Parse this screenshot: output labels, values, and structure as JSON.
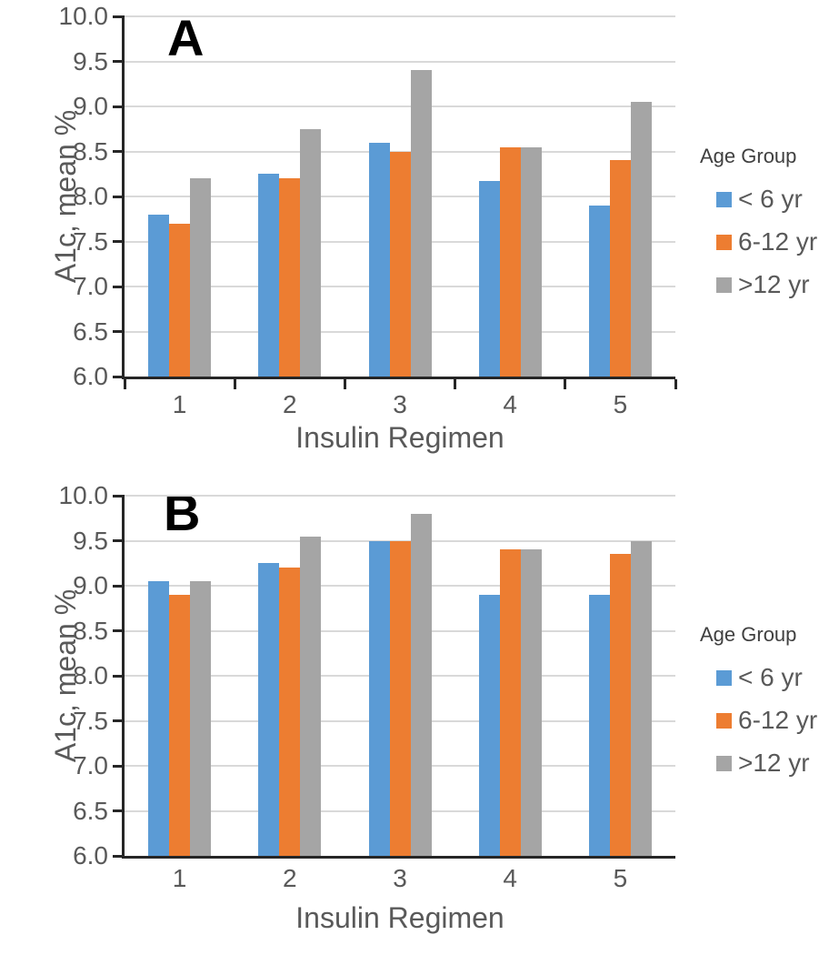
{
  "figure": {
    "background": "#ffffff"
  },
  "colors": {
    "axis": "#262626",
    "gridline": "#D9D9D9",
    "tick_label": "#595959",
    "axis_title": "#595959",
    "legend_title": "#404040",
    "legend_text": "#595959",
    "panel_letter": "#000000",
    "series_blue": "#5B9BD5",
    "series_orange": "#ED7D31",
    "series_gray": "#A5A5A5"
  },
  "panels": [
    {
      "label": "A",
      "chart_data": {
        "type": "bar",
        "title": "",
        "categories": [
          "1",
          "2",
          "3",
          "4",
          "5"
        ],
        "xlabel": "Insulin Regimen",
        "ylabel": "A1c, mean %",
        "ylim": [
          6.0,
          10.0
        ],
        "yticks": [
          "6.0",
          "6.5",
          "7.0",
          "7.5",
          "8.0",
          "8.5",
          "9.0",
          "9.5",
          "10.0"
        ],
        "grid": true,
        "legend_position": "right",
        "legend_title": "Age Group",
        "series": [
          {
            "name": "< 6 yr",
            "color": "#5B9BD5",
            "values": [
              7.8,
              8.25,
              8.6,
              8.17,
              7.9
            ]
          },
          {
            "name": "6-12 yr",
            "color": "#ED7D31",
            "values": [
              7.7,
              8.2,
              8.5,
              8.55,
              8.4
            ]
          },
          {
            "name": ">12 yr",
            "color": "#A5A5A5",
            "values": [
              8.2,
              8.75,
              9.4,
              8.55,
              9.05
            ]
          }
        ]
      }
    },
    {
      "label": "B",
      "chart_data": {
        "type": "bar",
        "title": "",
        "categories": [
          "1",
          "2",
          "3",
          "4",
          "5"
        ],
        "xlabel": "Insulin Regimen",
        "ylabel": "A1c, mean %",
        "ylim": [
          6.0,
          10.0
        ],
        "yticks": [
          "6.0",
          "6.5",
          "7.0",
          "7.5",
          "8.0",
          "8.5",
          "9.0",
          "9.5",
          "10.0"
        ],
        "grid": true,
        "legend_position": "right",
        "legend_title": "Age Group",
        "series": [
          {
            "name": "< 6 yr",
            "color": "#5B9BD5",
            "values": [
              9.05,
              9.25,
              9.5,
              8.9,
              8.9
            ]
          },
          {
            "name": "6-12 yr",
            "color": "#ED7D31",
            "values": [
              8.9,
              9.2,
              9.5,
              9.4,
              9.35
            ]
          },
          {
            "name": ">12 yr",
            "color": "#A5A5A5",
            "values": [
              9.05,
              9.55,
              9.8,
              9.4,
              9.5
            ]
          }
        ]
      }
    }
  ]
}
